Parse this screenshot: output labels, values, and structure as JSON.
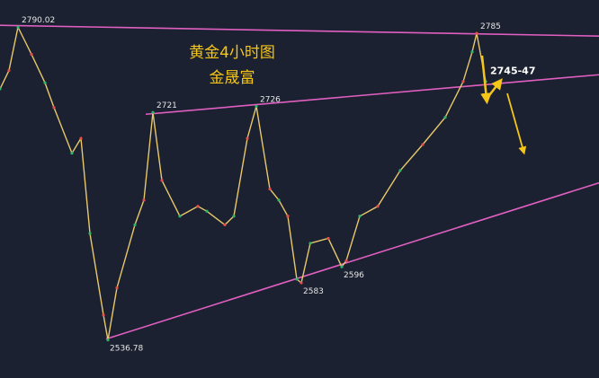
{
  "chart_data": {
    "type": "line",
    "title": "黄金4小时图",
    "subtitle": "金晟富",
    "x": [
      0,
      2,
      4,
      7,
      10,
      12,
      16,
      18,
      20,
      23,
      24,
      26,
      30,
      32,
      34,
      36,
      40,
      44,
      46,
      50,
      52,
      55,
      57,
      60,
      62,
      64,
      66,
      67,
      69,
      73,
      76,
      77,
      80,
      84,
      89,
      94,
      99,
      103,
      105,
      106,
      108
    ],
    "values": [
      2740,
      2755,
      2790.02,
      2768,
      2745,
      2725,
      2688,
      2700,
      2623,
      2557,
      2536.78,
      2579,
      2630,
      2650,
      2721,
      2666,
      2637,
      2645,
      2641,
      2630,
      2637,
      2700,
      2726,
      2659,
      2650,
      2637,
      2586,
      2583,
      2615,
      2619,
      2596,
      2601,
      2637,
      2645,
      2674,
      2695,
      2717,
      2746,
      2770,
      2785,
      2746
    ],
    "color": "#e8c86a",
    "xlim": [
      0,
      133.2
    ],
    "ylim": [
      2506,
      2812
    ],
    "point_labels": [
      {
        "x": 4,
        "value": 2790.02
      },
      {
        "x": 24,
        "value": 2536.78
      },
      {
        "x": 34,
        "value": 2721
      },
      {
        "x": 57,
        "value": 2726
      },
      {
        "x": 67,
        "value": 2583
      },
      {
        "x": 76,
        "value": 2596
      },
      {
        "x": 106,
        "value": 2785
      }
    ],
    "trendlines": [
      {
        "x": [
          0,
          133.2
        ],
        "values": [
          2791.5,
          2782.8
        ],
        "color": "#e05fc0"
      },
      {
        "x": [
          32.4,
          133.2
        ],
        "values": [
          2719.5,
          2751.5
        ],
        "color": "#e05fc0"
      },
      {
        "x": [
          23.6,
          133.2
        ],
        "values": [
          2537.6,
          2664
        ],
        "color": "#e05fc0"
      }
    ],
    "annotations": [
      {
        "text": "2745-47",
        "x": 109,
        "value": 2752
      }
    ]
  }
}
